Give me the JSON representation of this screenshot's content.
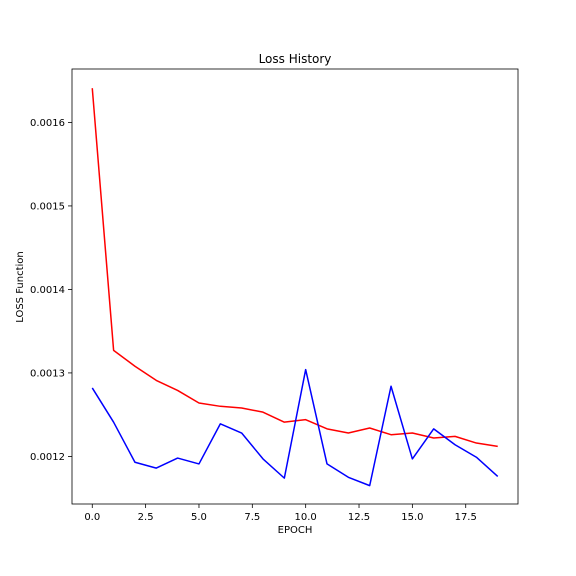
{
  "chart_data": {
    "type": "line",
    "title": "Loss History",
    "xlabel": "EPOCH",
    "ylabel": "LOSS Function",
    "xlim": [
      -0.95,
      19.95
    ],
    "ylim": [
      0.001143,
      0.001664
    ],
    "xticks": [
      0.0,
      2.5,
      5.0,
      7.5,
      10.0,
      12.5,
      15.0,
      17.5
    ],
    "xtick_labels": [
      "0.0",
      "2.5",
      "5.0",
      "7.5",
      "10.0",
      "12.5",
      "15.0",
      "17.5"
    ],
    "yticks": [
      0.0012,
      0.0013,
      0.0014,
      0.0015,
      0.0016
    ],
    "ytick_labels": [
      "0.0012",
      "0.0013",
      "0.0014",
      "0.0015",
      "0.0016"
    ],
    "grid": false,
    "legend": "none",
    "x": [
      0,
      1,
      2,
      3,
      4,
      5,
      6,
      7,
      8,
      9,
      10,
      11,
      12,
      13,
      14,
      15,
      16,
      17,
      18,
      19
    ],
    "series": [
      {
        "color": "#ff0000",
        "values": [
          0.001641,
          0.001327,
          0.001308,
          0.001291,
          0.001279,
          0.001264,
          0.00126,
          0.001258,
          0.001253,
          0.001241,
          0.001244,
          0.001233,
          0.001228,
          0.001234,
          0.001226,
          0.001228,
          0.001222,
          0.001224,
          0.001216,
          0.001212
        ]
      },
      {
        "color": "#0000ff",
        "values": [
          0.001282,
          0.001241,
          0.001193,
          0.001186,
          0.001198,
          0.001191,
          0.001239,
          0.001228,
          0.001197,
          0.001174,
          0.001304,
          0.001191,
          0.001175,
          0.001165,
          0.001284,
          0.001197,
          0.001233,
          0.001214,
          0.001199,
          0.001176
        ]
      }
    ]
  }
}
